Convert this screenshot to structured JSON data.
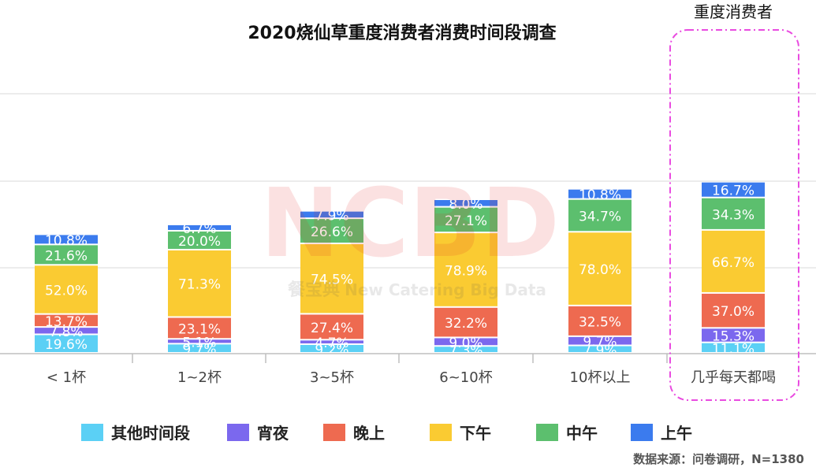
{
  "chart_data": {
    "type": "bar",
    "stacked": true,
    "title": "2020烧仙草重度消费者消费时间段调查",
    "categories": [
      "< 1杯",
      "1~2杯",
      "3~5杯",
      "6~10杯",
      "10杯以上",
      "几乎每天都喝"
    ],
    "series": [
      {
        "name": "其他时间段",
        "color": "#5BD0F5",
        "values": [
          19.6,
          9.7,
          9.2,
          7.3,
          7.9,
          11.1
        ]
      },
      {
        "name": "宵夜",
        "color": "#7B68EE",
        "values": [
          7.8,
          5.1,
          4.7,
          9.0,
          9.7,
          15.3
        ]
      },
      {
        "name": "晚上",
        "color": "#EE6A50",
        "values": [
          13.7,
          23.1,
          27.4,
          32.2,
          32.5,
          37.0
        ]
      },
      {
        "name": "下午",
        "color": "#FACB32",
        "values": [
          52.0,
          71.3,
          74.5,
          78.9,
          78.0,
          66.7
        ]
      },
      {
        "name": "中午",
        "color": "#5CBF6E",
        "values": [
          21.6,
          20.0,
          26.6,
          27.1,
          34.7,
          34.3
        ]
      },
      {
        "name": "上午",
        "color": "#3B7BEE",
        "values": [
          10.8,
          6.7,
          7.9,
          8.0,
          10.8,
          16.7
        ]
      }
    ],
    "value_suffix": "%",
    "highlight": {
      "category_index": 5,
      "label": "重度消费者",
      "color": "#E94BE0"
    },
    "legend_position": "bottom",
    "grid": true
  },
  "watermark": {
    "main": "NCBD",
    "sub_cn": "餐宝典",
    "sub_en": "New Catering Big Data"
  },
  "source_note": "数据来源：问卷调研，N=1380"
}
